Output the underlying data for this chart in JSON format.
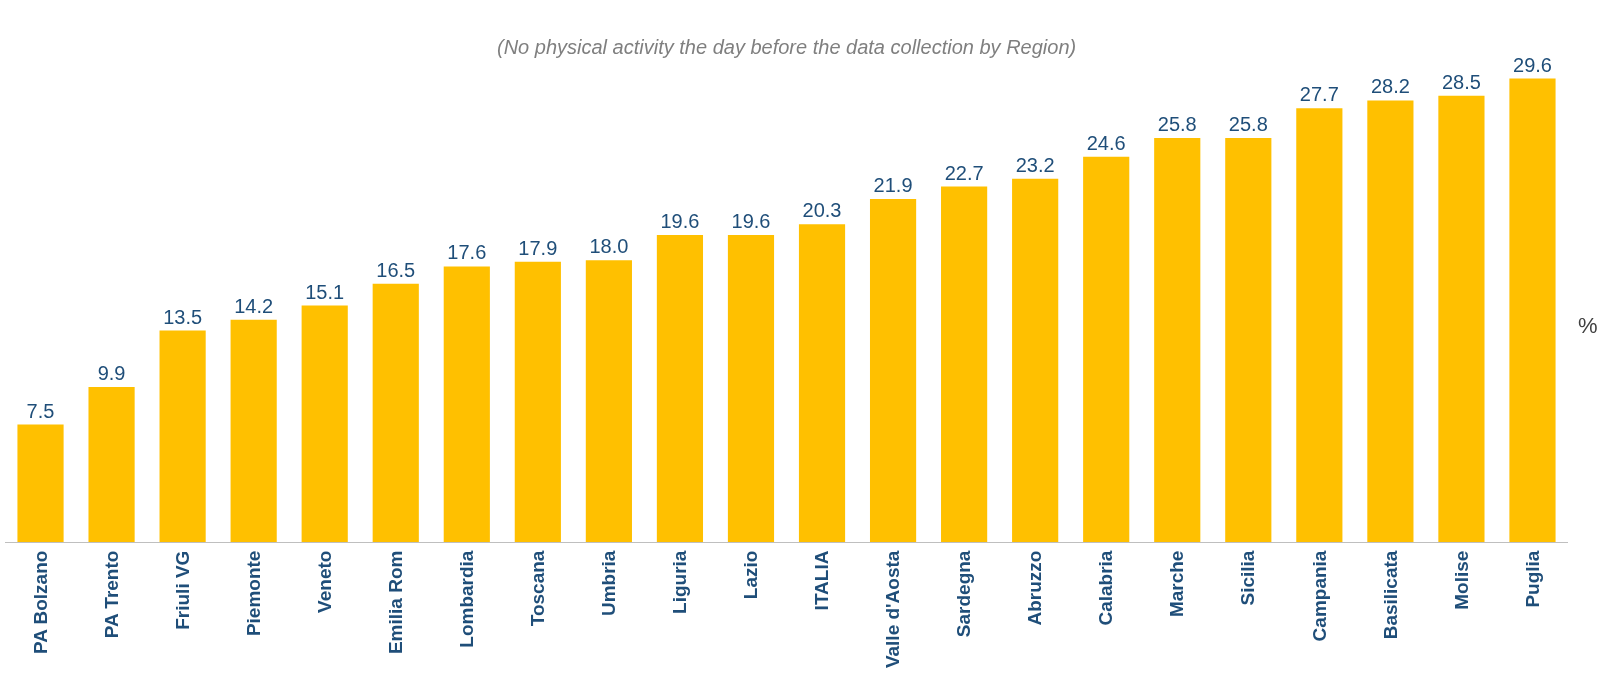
{
  "chart_data": {
    "type": "bar",
    "subtitle": "(No physical activity the day before the data collection by Region)",
    "ylabel": "%",
    "categories": [
      "PA Bolzano",
      "PA Trento",
      "Friuli VG",
      "Piemonte",
      "Veneto",
      "Emilia Rom",
      "Lombardia",
      "Toscana",
      "Umbria",
      "Liguria",
      "Lazio",
      "ITALIA",
      "Valle d'Aosta",
      "Sardegna",
      "Abruzzo",
      "Calabria",
      "Marche",
      "Sicilia",
      "Campania",
      "Basilicata",
      "Molise",
      "Puglia"
    ],
    "values": [
      7.5,
      9.9,
      13.5,
      14.2,
      15.1,
      16.5,
      17.6,
      17.9,
      18.0,
      19.6,
      19.6,
      20.3,
      21.9,
      22.7,
      23.2,
      24.6,
      25.8,
      25.8,
      27.7,
      28.2,
      28.5,
      29.6
    ],
    "value_labels": [
      "7.5",
      "9.9",
      "13.5",
      "14.2",
      "15.1",
      "16.5",
      "17.6",
      "17.9",
      "18.0",
      "19.6",
      "19.6",
      "20.3",
      "21.9",
      "22.7",
      "23.2",
      "24.6",
      "25.8",
      "25.8",
      "27.7",
      "28.2",
      "28.5",
      "29.6"
    ],
    "color": "#ffc000",
    "data_labels": true
  }
}
